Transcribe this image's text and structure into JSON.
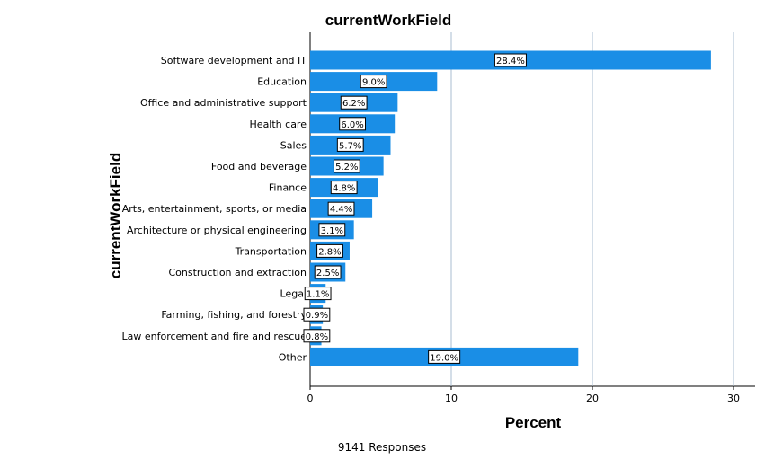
{
  "chart_data": {
    "type": "bar",
    "orientation": "horizontal",
    "title": "currentWorkField",
    "xlabel": "Percent",
    "ylabel": "currentWorkField",
    "xlim": [
      0,
      31
    ],
    "xticks": [
      0,
      10,
      20,
      30
    ],
    "grid": true,
    "bar_color": "#1a8ee6",
    "categories": [
      "Software development and IT",
      "Education",
      "Office and administrative support",
      "Health care",
      "Sales",
      "Food and beverage",
      "Finance",
      "Arts, entertainment, sports, or media",
      "Architecture or physical engineering",
      "Transportation",
      "Construction and extraction",
      "Legal",
      "Farming, fishing, and forestry",
      "Law enforcement and fire and rescue",
      "Other"
    ],
    "values": [
      28.4,
      9.0,
      6.2,
      6.0,
      5.7,
      5.2,
      4.8,
      4.4,
      3.1,
      2.8,
      2.5,
      1.1,
      0.9,
      0.8,
      19.0
    ],
    "data_labels": [
      "28.4%",
      "9.0%",
      "6.2%",
      "6.0%",
      "5.7%",
      "5.2%",
      "4.8%",
      "4.4%",
      "3.1%",
      "2.8%",
      "2.5%",
      "1.1%",
      "0.9%",
      "0.8%",
      "19.0%"
    ],
    "footnote": "9141 Responses"
  }
}
